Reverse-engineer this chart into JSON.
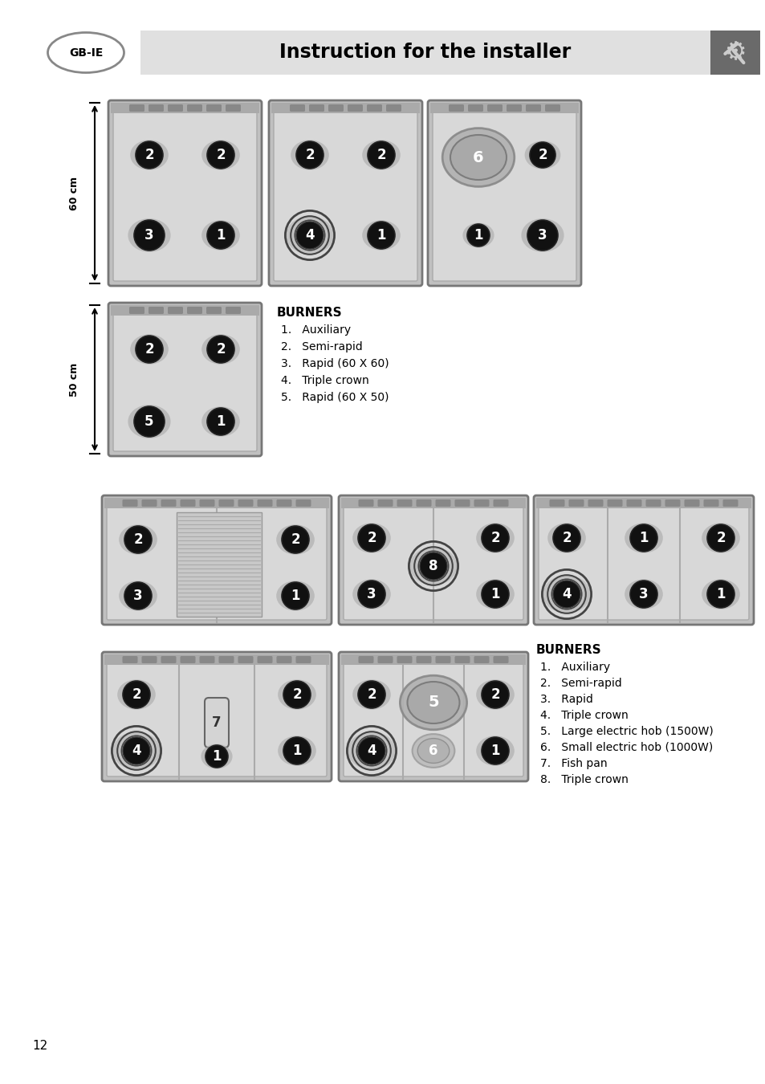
{
  "title": "Instruction for the installer",
  "bg_color": "#ffffff",
  "page_number": "12",
  "burners_label_1": "BURNERS",
  "burners_list_1": [
    "1.   Auxiliary",
    "2.   Semi-rapid",
    "3.   Rapid (60 X 60)",
    "4.   Triple crown",
    "5.   Rapid (60 X 50)"
  ],
  "burners_label_2": "BURNERS",
  "burners_list_2": [
    "1.   Auxiliary",
    "2.   Semi-rapid",
    "3.   Rapid",
    "4.   Triple crown",
    "5.   Large electric hob (1500W)",
    "6.   Small electric hob (1000W)",
    "7.   Fish pan",
    "8.   Triple crown"
  ]
}
